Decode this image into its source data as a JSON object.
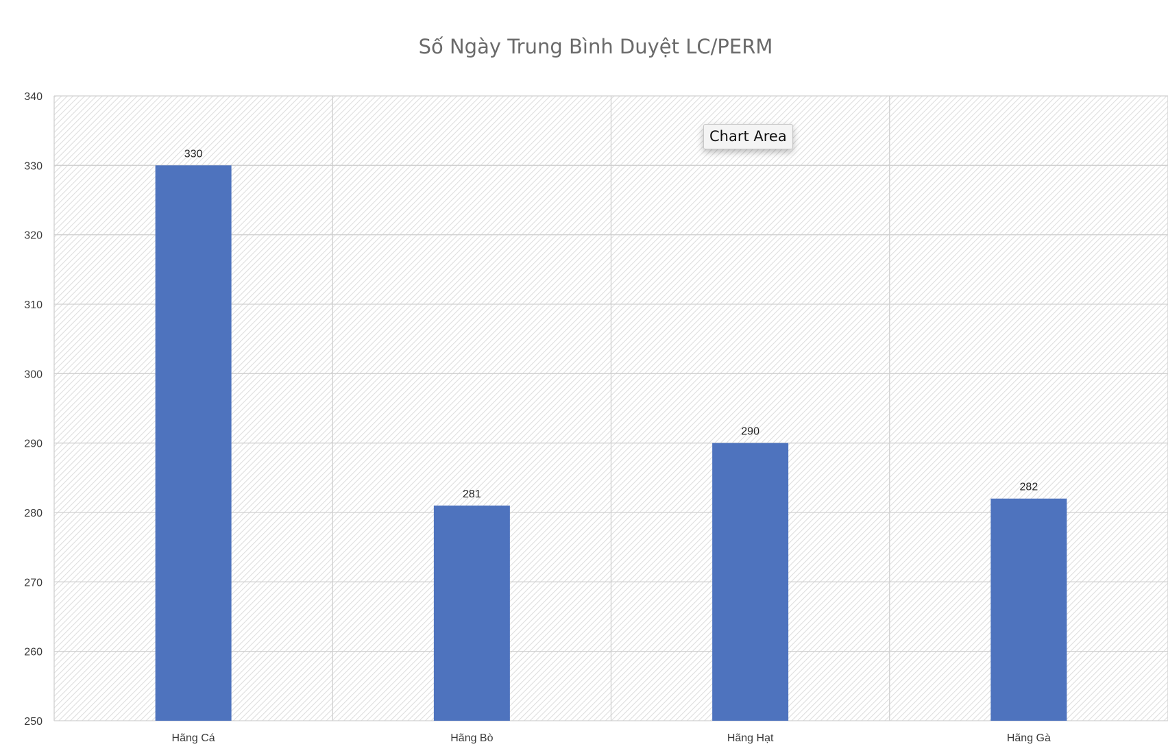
{
  "colors": {
    "bar": "#4e73be",
    "grid": "#d0d0d0",
    "axis_text": "#3a3a3a",
    "title": "#6a6a6a",
    "plot_hatch": "#e4e4e4"
  },
  "tooltip": {
    "label": "Chart Area"
  },
  "chart_data": {
    "type": "bar",
    "title": "Số Ngày Trung Bình Duyệt LC/PERM",
    "xlabel": "",
    "ylabel": "",
    "categories": [
      "Hãng Cá",
      "Hãng Bò",
      "Hãng Hạt",
      "Hãng Gà"
    ],
    "values": [
      330,
      281,
      290,
      282
    ],
    "data_labels": [
      "330",
      "281",
      "290",
      "282"
    ],
    "ylim": [
      250,
      340
    ],
    "yticks": [
      "250",
      "260",
      "270",
      "280",
      "290",
      "300",
      "310",
      "320",
      "330",
      "340"
    ],
    "grid": true,
    "legend": "none"
  }
}
